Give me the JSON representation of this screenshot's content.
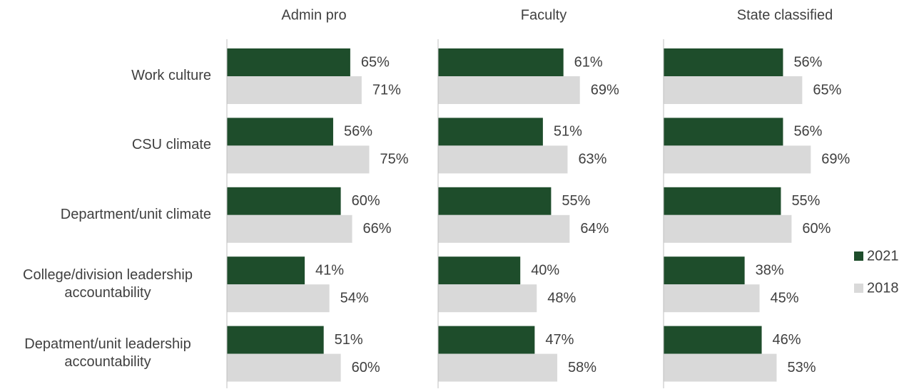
{
  "chart_data": {
    "type": "bar",
    "orientation": "horizontal",
    "categories": [
      "Work culture",
      "CSU climate",
      "Department/unit climate",
      "College/division leadership accountability",
      "Depatment/unit leadership accountability"
    ],
    "series": [
      {
        "name": "2021",
        "color": "#1e4d2b"
      },
      {
        "name": "2018",
        "color": "#d9d9d9"
      }
    ],
    "panels": [
      {
        "title": "Admin pro",
        "xlim": [
          0,
          100
        ],
        "series": [
          {
            "values": [
              65,
              56,
              60,
              41,
              51
            ],
            "value_labels": [
              "65%",
              "56%",
              "60%",
              "41%",
              "51%"
            ]
          },
          {
            "values": [
              71,
              75,
              66,
              54,
              60
            ],
            "value_labels": [
              "71%",
              "75%",
              "66%",
              "54%",
              "60%"
            ]
          }
        ]
      },
      {
        "title": "Faculty",
        "xlim": [
          0,
          100
        ],
        "series": [
          {
            "values": [
              61,
              51,
              55,
              40,
              47
            ],
            "value_labels": [
              "61%",
              "51%",
              "55%",
              "40%",
              "47%"
            ]
          },
          {
            "values": [
              69,
              63,
              64,
              48,
              58
            ],
            "value_labels": [
              "69%",
              "63%",
              "64%",
              "48%",
              "58%"
            ]
          }
        ]
      },
      {
        "title": "State classified",
        "xlim": [
          0,
          100
        ],
        "series": [
          {
            "values": [
              56,
              56,
              55,
              38,
              46
            ],
            "value_labels": [
              "56%",
              "56%",
              "55%",
              "38%",
              "46%"
            ]
          },
          {
            "values": [
              65,
              69,
              60,
              45,
              53
            ],
            "value_labels": [
              "65%",
              "69%",
              "60%",
              "45%",
              "53%"
            ]
          }
        ]
      }
    ],
    "legend": "right"
  }
}
